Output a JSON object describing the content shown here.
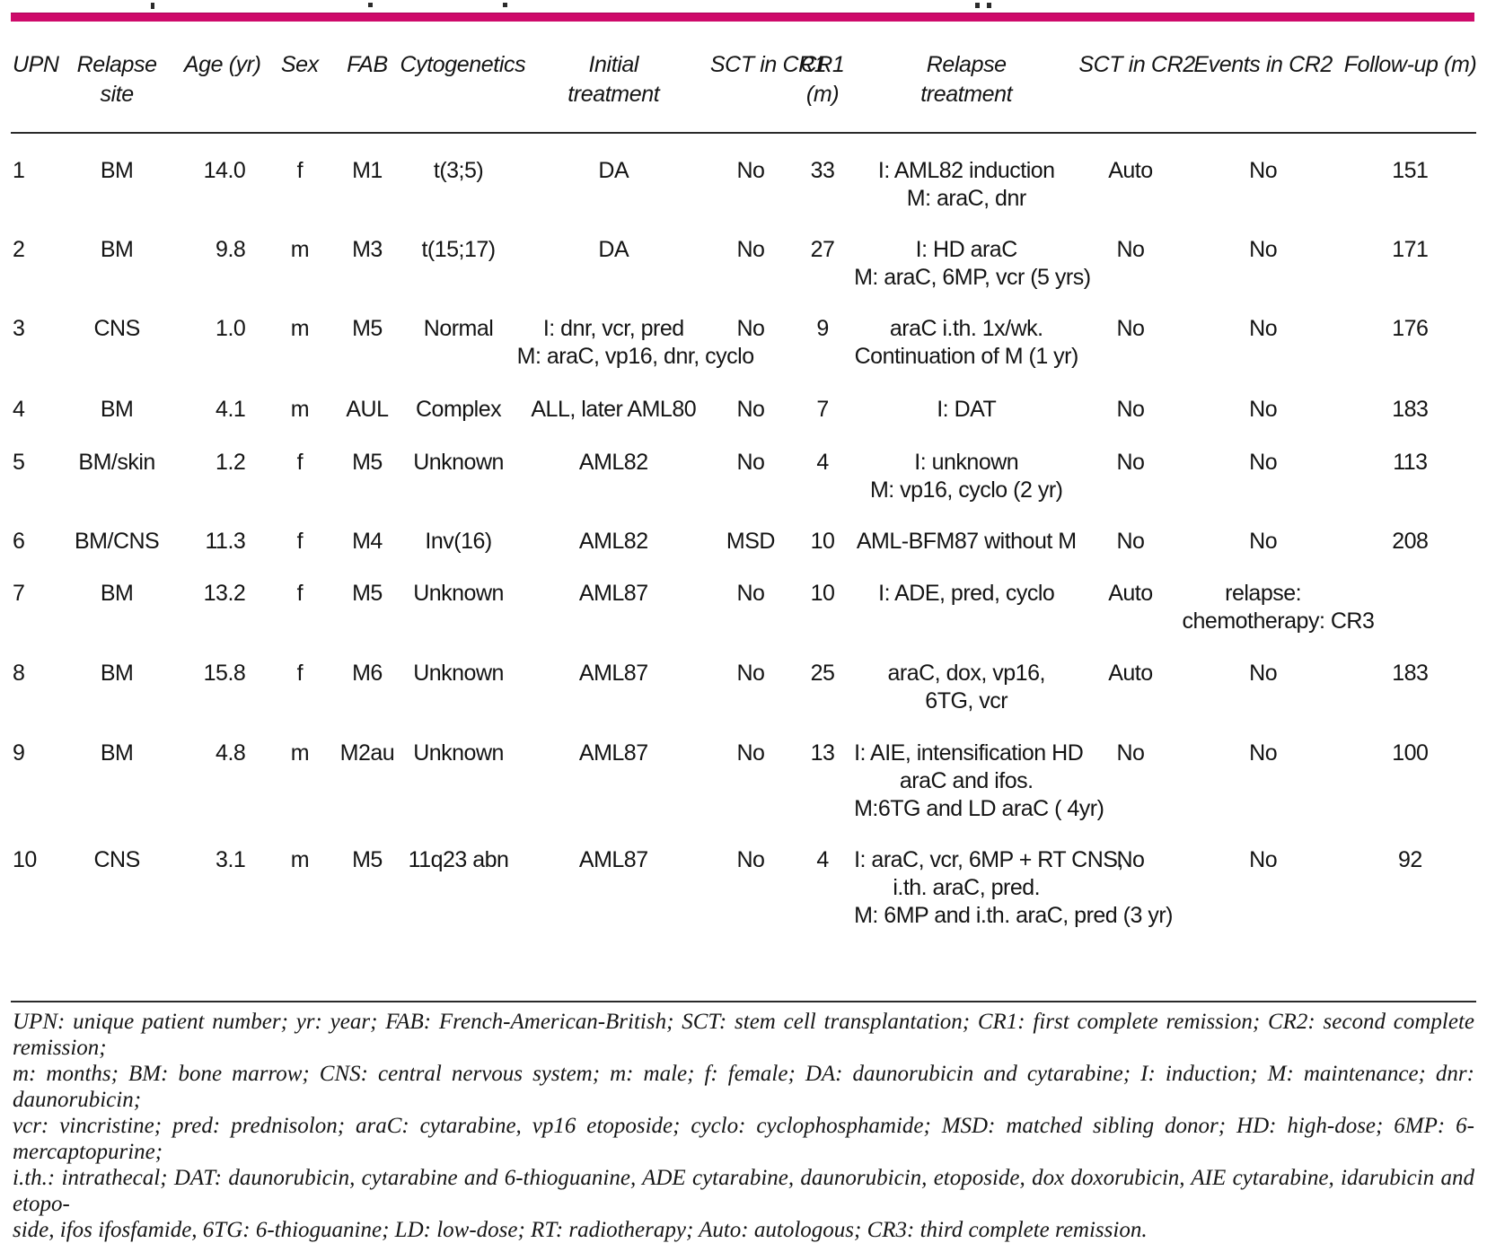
{
  "colors": {
    "accent": "#ce0a6a",
    "rule": "#2a2a2a",
    "text": "#141414"
  },
  "table": {
    "columns": [
      {
        "id": "upn",
        "label_lines": [
          "UPN"
        ]
      },
      {
        "id": "relapse_site",
        "label_lines": [
          "Relapse",
          "site"
        ]
      },
      {
        "id": "age",
        "label_lines": [
          "Age (yr)"
        ]
      },
      {
        "id": "sex",
        "label_lines": [
          "Sex"
        ]
      },
      {
        "id": "fab",
        "label_lines": [
          "FAB"
        ]
      },
      {
        "id": "cytogenetics",
        "label_lines": [
          "Cytogenetics"
        ]
      },
      {
        "id": "initial_treatment",
        "label_lines": [
          "Initial",
          "treatment"
        ]
      },
      {
        "id": "sct_cr1",
        "label_lines": [
          "SCT in CR1"
        ]
      },
      {
        "id": "cr1_m",
        "label_lines": [
          "CR1",
          "(m)"
        ]
      },
      {
        "id": "relapse_treatment",
        "label_lines": [
          "Relapse",
          "treatment"
        ]
      },
      {
        "id": "sct_cr2",
        "label_lines": [
          "SCT in CR2"
        ]
      },
      {
        "id": "events_cr2",
        "label_lines": [
          "Events in CR2"
        ]
      },
      {
        "id": "followup_m",
        "label_lines": [
          "Follow-up (m)"
        ]
      }
    ],
    "rows": [
      {
        "upn": "1",
        "relapse_site": "BM",
        "age": "14.0",
        "sex": "f",
        "fab": "M1",
        "cytogenetics": "t(3;5)",
        "initial_treatment": [
          "DA"
        ],
        "sct_cr1": "No",
        "cr1_m": "33",
        "relapse_treatment": [
          "I: AML82 induction",
          "M: araC, dnr"
        ],
        "sct_cr2": "Auto",
        "events_cr2": [
          "No"
        ],
        "followup_m": "151"
      },
      {
        "upn": "2",
        "relapse_site": "BM",
        "age": "9.8",
        "sex": "m",
        "fab": "M3",
        "cytogenetics": "t(15;17)",
        "initial_treatment": [
          "DA"
        ],
        "sct_cr1": "No",
        "cr1_m": "27",
        "relapse_treatment": [
          "I: HD araC",
          "M: araC, 6MP, vcr (5 yrs)"
        ],
        "sct_cr2": "No",
        "events_cr2": [
          "No"
        ],
        "followup_m": "171"
      },
      {
        "upn": "3",
        "relapse_site": "CNS",
        "age": "1.0",
        "sex": "m",
        "fab": "M5",
        "cytogenetics": "Normal",
        "initial_treatment": [
          "I: dnr, vcr, pred",
          "M: araC, vp16, dnr, cyclo"
        ],
        "sct_cr1": "No",
        "cr1_m": "9",
        "relapse_treatment": [
          "araC i.th. 1x/wk.",
          "Continuation of M (1 yr)"
        ],
        "sct_cr2": "No",
        "events_cr2": [
          "No"
        ],
        "followup_m": "176"
      },
      {
        "upn": "4",
        "relapse_site": "BM",
        "age": "4.1",
        "sex": "m",
        "fab": "AUL",
        "cytogenetics": "Complex",
        "initial_treatment": [
          "ALL, later AML80"
        ],
        "sct_cr1": "No",
        "cr1_m": "7",
        "relapse_treatment": [
          "I: DAT"
        ],
        "sct_cr2": "No",
        "events_cr2": [
          "No"
        ],
        "followup_m": "183"
      },
      {
        "upn": "5",
        "relapse_site": "BM/skin",
        "age": "1.2",
        "sex": "f",
        "fab": "M5",
        "cytogenetics": "Unknown",
        "initial_treatment": [
          "AML82"
        ],
        "sct_cr1": "No",
        "cr1_m": "4",
        "relapse_treatment": [
          "I: unknown",
          "M: vp16, cyclo (2 yr)"
        ],
        "sct_cr2": "No",
        "events_cr2": [
          "No"
        ],
        "followup_m": "113"
      },
      {
        "upn": "6",
        "relapse_site": "BM/CNS",
        "age": "11.3",
        "sex": "f",
        "fab": "M4",
        "cytogenetics": "Inv(16)",
        "initial_treatment": [
          "AML82"
        ],
        "sct_cr1": "MSD",
        "cr1_m": "10",
        "relapse_treatment": [
          "AML-BFM87 without M"
        ],
        "sct_cr2": "No",
        "events_cr2": [
          "No"
        ],
        "followup_m": "208"
      },
      {
        "upn": "7",
        "relapse_site": "BM",
        "age": "13.2",
        "sex": "f",
        "fab": "M5",
        "cytogenetics": "Unknown",
        "initial_treatment": [
          "AML87"
        ],
        "sct_cr1": "No",
        "cr1_m": "10",
        "relapse_treatment": [
          "I: ADE, pred, cyclo"
        ],
        "sct_cr2": "Auto",
        "events_cr2": [
          "relapse:",
          "chemotherapy: CR3"
        ],
        "followup_m": ""
      },
      {
        "upn": "8",
        "relapse_site": "BM",
        "age": "15.8",
        "sex": "f",
        "fab": "M6",
        "cytogenetics": "Unknown",
        "initial_treatment": [
          "AML87"
        ],
        "sct_cr1": "No",
        "cr1_m": "25",
        "relapse_treatment": [
          "araC, dox, vp16,",
          "6TG, vcr"
        ],
        "sct_cr2": "Auto",
        "events_cr2": [
          "No"
        ],
        "followup_m": "183"
      },
      {
        "upn": "9",
        "relapse_site": "BM",
        "age": "4.8",
        "sex": "m",
        "fab": "M2au",
        "cytogenetics": "Unknown",
        "initial_treatment": [
          "AML87"
        ],
        "sct_cr1": "No",
        "cr1_m": "13",
        "relapse_treatment": [
          "I: AIE, intensification HD",
          "araC and ifos.",
          "M:6TG and LD araC ( 4yr)"
        ],
        "sct_cr2": "No",
        "events_cr2": [
          "No"
        ],
        "followup_m": "100"
      },
      {
        "upn": "10",
        "relapse_site": "CNS",
        "age": "3.1",
        "sex": "m",
        "fab": "M5",
        "cytogenetics": "11q23 abn",
        "initial_treatment": [
          "AML87"
        ],
        "sct_cr1": "No",
        "cr1_m": "4",
        "relapse_treatment": [
          "I: araC, vcr, 6MP + RT CNS,",
          "i.th. araC, pred.",
          "M: 6MP and i.th. araC, pred (3 yr)"
        ],
        "sct_cr2": "No",
        "events_cr2": [
          "No"
        ],
        "followup_m": "92"
      }
    ]
  },
  "footnote_lines": [
    "UPN: unique patient number; yr: year; FAB: French-American-British; SCT: stem cell transplantation; CR1: first complete remission; CR2: second complete remission;",
    "m: months; BM: bone marrow; CNS: central nervous system; m: male; f: female; DA: daunorubicin and cytarabine; I: induction; M: maintenance; dnr: daunorubicin;",
    "vcr: vincristine; pred: prednisolon; araC: cytarabine, vp16 etoposide; cyclo: cyclophosphamide; MSD: matched sibling donor; HD: high-dose; 6MP: 6-mercaptopurine;",
    "i.th.: intrathecal; DAT: daunorubicin, cytarabine and 6-thioguanine, ADE cytarabine, daunorubicin, etoposide, dox doxorubicin, AIE cytarabine, idarubicin and etopo-",
    "side, ifos ifosfamide, 6TG: 6-thioguanine; LD: low-dose; RT: radiotherapy; Auto: autologous; CR3: third complete remission."
  ]
}
